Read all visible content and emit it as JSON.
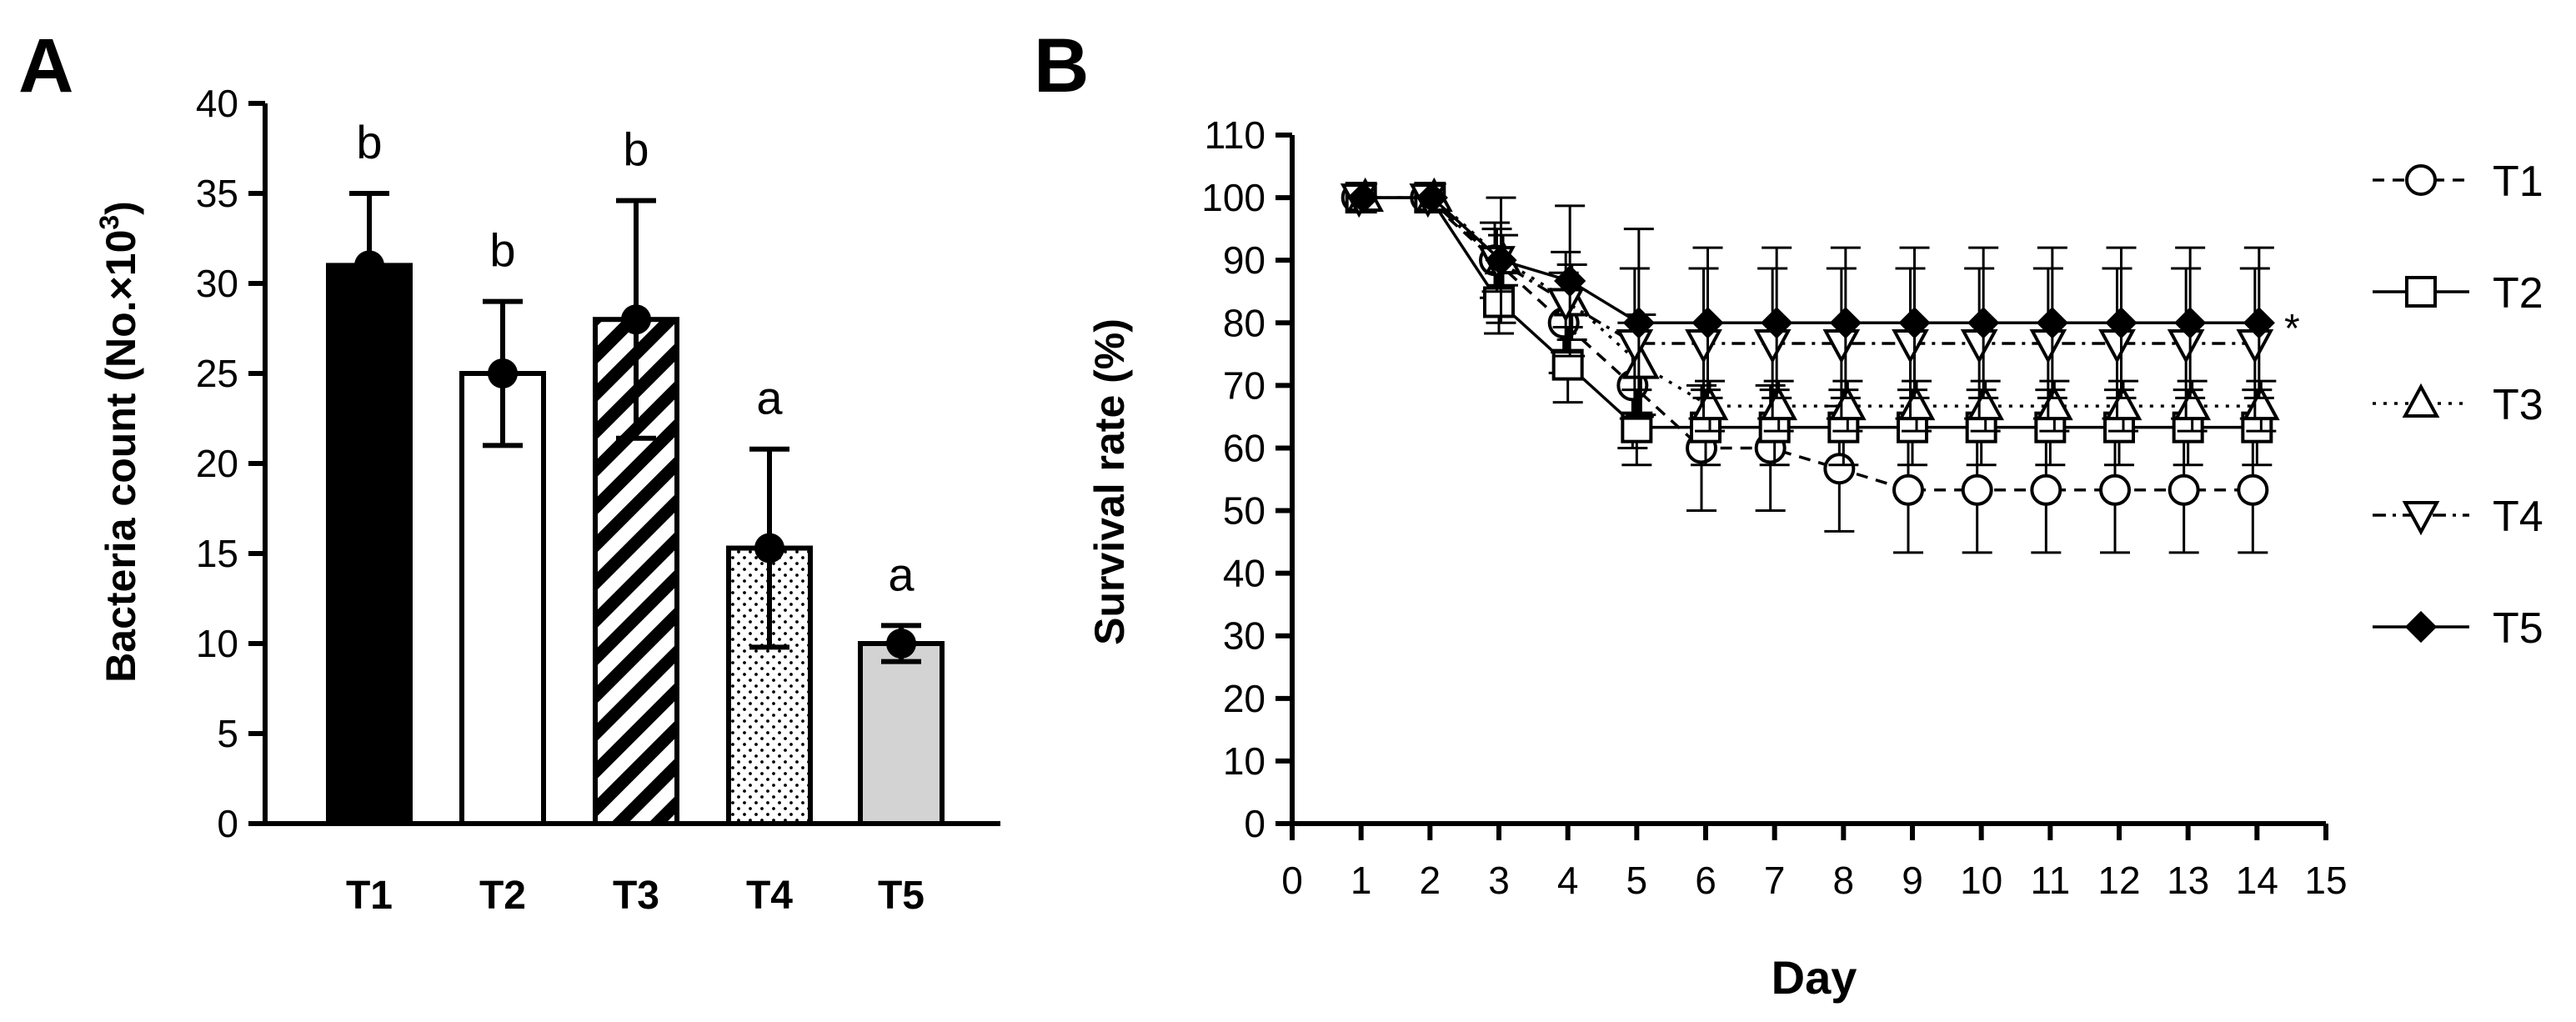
{
  "chart_data": [
    {
      "panel": "A",
      "type": "bar",
      "ylabel_prefix": "Bacteria count (No.×10",
      "ylabel_exponent": "3",
      "ylabel_suffix": ")",
      "xlabel": "",
      "ylim": [
        0,
        40
      ],
      "yticks": [
        0,
        5,
        10,
        15,
        20,
        25,
        30,
        35,
        40
      ],
      "categories": [
        "T1",
        "T2",
        "T3",
        "T4",
        "T5"
      ],
      "values": [
        31,
        25,
        28,
        15.3,
        10
      ],
      "errors": [
        4,
        4,
        6.6,
        5.5,
        1
      ],
      "significance": [
        "b",
        "b",
        "b",
        "a",
        "a"
      ],
      "patterns": [
        "solid-black",
        "white",
        "diagonal-stripes",
        "dots",
        "light-gray"
      ]
    },
    {
      "panel": "B",
      "type": "line",
      "xlabel": "Day",
      "ylabel": "Survival rate (%)",
      "xlim": [
        0,
        15
      ],
      "ylim": [
        0,
        110
      ],
      "xticks": [
        0,
        1,
        2,
        3,
        4,
        5,
        6,
        7,
        8,
        9,
        10,
        11,
        12,
        13,
        14,
        15
      ],
      "yticks": [
        0,
        10,
        20,
        30,
        40,
        50,
        60,
        70,
        80,
        90,
        100,
        110
      ],
      "x": [
        1,
        2,
        3,
        4,
        5,
        6,
        7,
        8,
        9,
        10,
        11,
        12,
        13,
        14
      ],
      "series": [
        {
          "name": "T1",
          "marker": "circle",
          "dash": "dashed",
          "values": [
            100,
            100,
            90,
            80,
            70,
            60,
            60,
            56.7,
            53.3,
            53.3,
            53.3,
            53.3,
            53.3,
            53.3
          ],
          "errors": [
            0,
            0,
            6,
            8,
            10,
            10,
            10,
            10,
            10,
            10,
            10,
            10,
            10,
            10
          ]
        },
        {
          "name": "T2",
          "marker": "square",
          "dash": "solid",
          "values": [
            100,
            100,
            83.3,
            73.3,
            63.3,
            63.3,
            63.3,
            63.3,
            63.3,
            63.3,
            63.3,
            63.3,
            63.3,
            63.3
          ],
          "errors": [
            0,
            0,
            5,
            6,
            6,
            6,
            6,
            6,
            6,
            6,
            6,
            6,
            6,
            6
          ]
        },
        {
          "name": "T3",
          "marker": "triangle-up",
          "dash": "dotted",
          "values": [
            100,
            100,
            90,
            83.3,
            73.3,
            66.7,
            66.7,
            66.7,
            66.7,
            66.7,
            66.7,
            66.7,
            66.7,
            66.7
          ],
          "errors": [
            0,
            0,
            4,
            6,
            8,
            4,
            4,
            4,
            4,
            4,
            4,
            4,
            4,
            4
          ]
        },
        {
          "name": "T4",
          "marker": "triangle-down",
          "dash": "dashdot",
          "values": [
            100,
            100,
            90,
            83.3,
            76.7,
            76.7,
            76.7,
            76.7,
            76.7,
            76.7,
            76.7,
            76.7,
            76.7,
            76.7
          ],
          "errors": [
            0,
            0,
            5,
            8,
            12,
            12,
            12,
            12,
            12,
            12,
            12,
            12,
            12,
            12
          ]
        },
        {
          "name": "T5",
          "marker": "diamond",
          "dash": "solid",
          "values": [
            100,
            100,
            90,
            86.7,
            80,
            80,
            80,
            80,
            80,
            80,
            80,
            80,
            80,
            80
          ],
          "errors": [
            0,
            0,
            10,
            12,
            15,
            12,
            12,
            12,
            12,
            12,
            12,
            12,
            12,
            12
          ]
        }
      ],
      "annotation": "*"
    }
  ]
}
